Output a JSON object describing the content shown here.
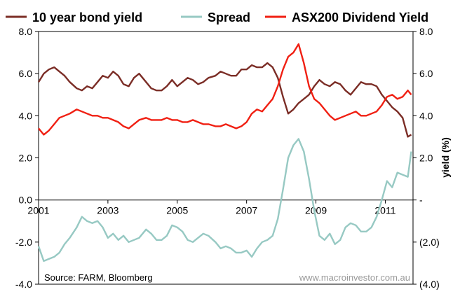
{
  "chart_data": {
    "type": "line",
    "title": "",
    "xlabel": "",
    "ylabel": "",
    "y2label": "yield (%)",
    "xlim": [
      2001,
      2011.8
    ],
    "ylim": [
      -4.0,
      8.0
    ],
    "y2lim": [
      -4.0,
      8.0
    ],
    "grid": false,
    "legend": {
      "position": "top",
      "entries": [
        "10 year bond yield",
        "Spread",
        "ASX200 Dividend Yield"
      ]
    },
    "x_ticks": [
      2001,
      2003,
      2005,
      2007,
      2009,
      2011
    ],
    "x_tick_labels": [
      "2001",
      "2003",
      "2005",
      "2007",
      "2009",
      "2011"
    ],
    "y_ticks": [
      8,
      6,
      4,
      2,
      0,
      -2,
      -4
    ],
    "y_tick_labels": [
      "8.0",
      "6.0",
      "4.0",
      "2.0",
      "0.0",
      "-2.0",
      "-4.0"
    ],
    "y2_ticks": [
      8,
      6,
      4,
      2,
      0,
      -2,
      -4
    ],
    "y2_tick_labels": [
      "8.0",
      "6.0",
      "4.0",
      "2.0",
      "-",
      "(2.0)",
      "(4.0)"
    ],
    "annotations": {
      "source": "Source: FARM, Bloomberg",
      "website": "www.macroinvestor.com.au"
    },
    "series": [
      {
        "name": "10 year bond yield",
        "color": "#7b2d26",
        "x": [
          2001.0,
          2001.15,
          2001.3,
          2001.45,
          2001.6,
          2001.75,
          2001.9,
          2002.1,
          2002.25,
          2002.4,
          2002.55,
          2002.7,
          2002.85,
          2003.0,
          2003.15,
          2003.3,
          2003.45,
          2003.6,
          2003.75,
          2003.9,
          2004.1,
          2004.25,
          2004.4,
          2004.55,
          2004.7,
          2004.85,
          2005.0,
          2005.15,
          2005.3,
          2005.45,
          2005.6,
          2005.75,
          2005.9,
          2006.1,
          2006.25,
          2006.4,
          2006.55,
          2006.7,
          2006.85,
          2007.0,
          2007.15,
          2007.3,
          2007.45,
          2007.6,
          2007.75,
          2007.9,
          2008.05,
          2008.2,
          2008.35,
          2008.5,
          2008.65,
          2008.8,
          2008.95,
          2009.1,
          2009.25,
          2009.4,
          2009.55,
          2009.7,
          2009.85,
          2010.0,
          2010.15,
          2010.3,
          2010.45,
          2010.6,
          2010.75,
          2010.9,
          2011.05,
          2011.2,
          2011.35,
          2011.5,
          2011.65,
          2011.75
        ],
        "values": [
          5.6,
          6.0,
          6.2,
          6.3,
          6.1,
          5.9,
          5.6,
          5.3,
          5.2,
          5.4,
          5.3,
          5.6,
          5.9,
          5.8,
          6.1,
          5.9,
          5.5,
          5.4,
          5.8,
          6.0,
          5.6,
          5.3,
          5.2,
          5.2,
          5.4,
          5.7,
          5.4,
          5.6,
          5.8,
          5.7,
          5.5,
          5.6,
          5.8,
          5.9,
          6.1,
          6.0,
          5.9,
          5.9,
          6.2,
          6.2,
          6.4,
          6.3,
          6.3,
          6.5,
          6.3,
          5.8,
          4.9,
          4.1,
          4.3,
          4.6,
          4.8,
          5.0,
          5.4,
          5.7,
          5.5,
          5.4,
          5.6,
          5.5,
          5.2,
          5.0,
          5.3,
          5.6,
          5.5,
          5.5,
          5.4,
          5.0,
          4.7,
          4.4,
          4.2,
          3.9,
          3.0,
          3.1
        ]
      },
      {
        "name": "Spread",
        "color": "#97c9c3",
        "x": [
          2001.0,
          2001.15,
          2001.3,
          2001.45,
          2001.6,
          2001.75,
          2001.9,
          2002.1,
          2002.25,
          2002.4,
          2002.55,
          2002.7,
          2002.85,
          2003.0,
          2003.15,
          2003.3,
          2003.45,
          2003.6,
          2003.75,
          2003.9,
          2004.1,
          2004.25,
          2004.4,
          2004.55,
          2004.7,
          2004.85,
          2005.0,
          2005.15,
          2005.3,
          2005.45,
          2005.6,
          2005.75,
          2005.9,
          2006.1,
          2006.25,
          2006.4,
          2006.55,
          2006.7,
          2006.85,
          2007.0,
          2007.15,
          2007.3,
          2007.45,
          2007.6,
          2007.75,
          2007.9,
          2008.05,
          2008.2,
          2008.35,
          2008.5,
          2008.65,
          2008.8,
          2008.95,
          2009.1,
          2009.25,
          2009.4,
          2009.55,
          2009.7,
          2009.85,
          2010.0,
          2010.15,
          2010.3,
          2010.45,
          2010.6,
          2010.75,
          2010.9,
          2011.05,
          2011.2,
          2011.35,
          2011.5,
          2011.65,
          2011.75
        ],
        "values": [
          -2.2,
          -2.9,
          -2.8,
          -2.7,
          -2.5,
          -2.1,
          -1.8,
          -1.3,
          -0.8,
          -1.0,
          -1.1,
          -1.0,
          -1.3,
          -1.8,
          -1.6,
          -1.9,
          -1.7,
          -2.0,
          -1.9,
          -1.8,
          -1.4,
          -1.6,
          -1.9,
          -1.9,
          -1.7,
          -1.2,
          -1.3,
          -1.5,
          -1.9,
          -2.0,
          -1.8,
          -1.6,
          -1.7,
          -2.0,
          -2.3,
          -2.2,
          -2.3,
          -2.5,
          -2.5,
          -2.4,
          -2.7,
          -2.3,
          -2.0,
          -1.9,
          -1.7,
          -0.9,
          0.5,
          2.0,
          2.6,
          2.9,
          2.3,
          1.0,
          -0.5,
          -1.7,
          -1.9,
          -1.6,
          -2.1,
          -1.9,
          -1.3,
          -1.1,
          -1.2,
          -1.5,
          -1.5,
          -1.3,
          -0.8,
          0.0,
          0.9,
          0.6,
          1.3,
          1.2,
          1.1,
          2.3
        ]
      },
      {
        "name": "ASX200 Dividend Yield",
        "color": "#f01f12",
        "x": [
          2001.0,
          2001.15,
          2001.3,
          2001.45,
          2001.6,
          2001.75,
          2001.9,
          2002.1,
          2002.25,
          2002.4,
          2002.55,
          2002.7,
          2002.85,
          2003.0,
          2003.15,
          2003.3,
          2003.45,
          2003.6,
          2003.75,
          2003.9,
          2004.1,
          2004.25,
          2004.4,
          2004.55,
          2004.7,
          2004.85,
          2005.0,
          2005.15,
          2005.3,
          2005.45,
          2005.6,
          2005.75,
          2005.9,
          2006.1,
          2006.25,
          2006.4,
          2006.55,
          2006.7,
          2006.85,
          2007.0,
          2007.15,
          2007.3,
          2007.45,
          2007.6,
          2007.75,
          2007.9,
          2008.05,
          2008.2,
          2008.35,
          2008.5,
          2008.65,
          2008.8,
          2008.95,
          2009.1,
          2009.25,
          2009.4,
          2009.55,
          2009.7,
          2009.85,
          2010.0,
          2010.15,
          2010.3,
          2010.45,
          2010.6,
          2010.75,
          2010.9,
          2011.05,
          2011.2,
          2011.35,
          2011.5,
          2011.65,
          2011.75
        ],
        "values": [
          3.4,
          3.1,
          3.3,
          3.6,
          3.9,
          4.0,
          4.1,
          4.3,
          4.2,
          4.1,
          4.0,
          4.0,
          3.9,
          3.9,
          3.8,
          3.7,
          3.5,
          3.4,
          3.6,
          3.8,
          3.9,
          3.8,
          3.8,
          3.8,
          3.9,
          3.8,
          3.8,
          3.7,
          3.7,
          3.8,
          3.7,
          3.6,
          3.6,
          3.5,
          3.5,
          3.6,
          3.5,
          3.4,
          3.5,
          3.7,
          4.1,
          4.3,
          4.2,
          4.5,
          4.8,
          5.4,
          6.2,
          6.8,
          7.0,
          7.4,
          6.5,
          5.4,
          4.8,
          4.6,
          4.3,
          4.0,
          3.8,
          3.9,
          4.0,
          4.1,
          4.2,
          4.0,
          4.0,
          4.1,
          4.2,
          4.5,
          4.9,
          5.0,
          4.8,
          4.9,
          5.2,
          5.0
        ]
      }
    ]
  }
}
